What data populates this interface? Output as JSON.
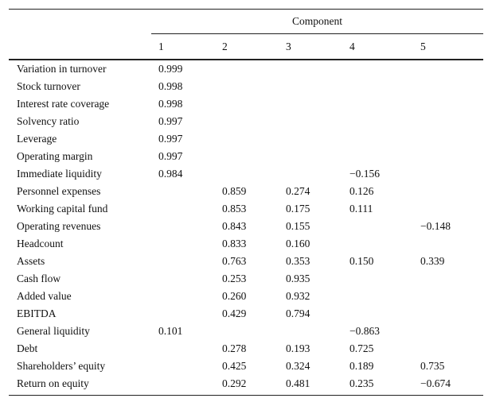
{
  "table": {
    "header": {
      "group": "Component",
      "columns": [
        "1",
        "2",
        "3",
        "4",
        "5"
      ]
    },
    "rows": [
      {
        "label": "Variation in turnover",
        "values": [
          "0.999",
          null,
          null,
          null,
          null
        ]
      },
      {
        "label": "Stock turnover",
        "values": [
          "0.998",
          null,
          null,
          null,
          null
        ]
      },
      {
        "label": "Interest rate coverage",
        "values": [
          "0.998",
          null,
          null,
          null,
          null
        ]
      },
      {
        "label": "Solvency ratio",
        "values": [
          "0.997",
          null,
          null,
          null,
          null
        ]
      },
      {
        "label": "Leverage",
        "values": [
          "0.997",
          null,
          null,
          null,
          null
        ]
      },
      {
        "label": "Operating margin",
        "values": [
          "0.997",
          null,
          null,
          null,
          null
        ]
      },
      {
        "label": "Immediate liquidity",
        "values": [
          "0.984",
          null,
          null,
          "−0.156",
          null
        ]
      },
      {
        "label": "Personnel expenses",
        "values": [
          null,
          "0.859",
          "0.274",
          "0.126",
          null
        ]
      },
      {
        "label": "Working capital fund",
        "values": [
          null,
          "0.853",
          "0.175",
          "0.111",
          null
        ]
      },
      {
        "label": "Operating revenues",
        "values": [
          null,
          "0.843",
          "0.155",
          null,
          "−0.148"
        ]
      },
      {
        "label": "Headcount",
        "values": [
          null,
          "0.833",
          "0.160",
          null,
          null
        ]
      },
      {
        "label": "Assets",
        "values": [
          null,
          "0.763",
          "0.353",
          "0.150",
          "0.339"
        ]
      },
      {
        "label": "Cash flow",
        "values": [
          null,
          "0.253",
          "0.935",
          null,
          null
        ]
      },
      {
        "label": "Added value",
        "values": [
          null,
          "0.260",
          "0.932",
          null,
          null
        ]
      },
      {
        "label": "EBITDA",
        "values": [
          null,
          "0.429",
          "0.794",
          null,
          null
        ]
      },
      {
        "label": "General liquidity",
        "values": [
          "0.101",
          null,
          null,
          "−0.863",
          null
        ]
      },
      {
        "label": "Debt",
        "values": [
          null,
          "0.278",
          "0.193",
          "0.725",
          null
        ]
      },
      {
        "label": "Shareholders’ equity",
        "values": [
          null,
          "0.425",
          "0.324",
          "0.189",
          "0.735"
        ]
      },
      {
        "label": "Return on equity",
        "values": [
          null,
          "0.292",
          "0.481",
          "0.235",
          "−0.674"
        ]
      }
    ]
  }
}
